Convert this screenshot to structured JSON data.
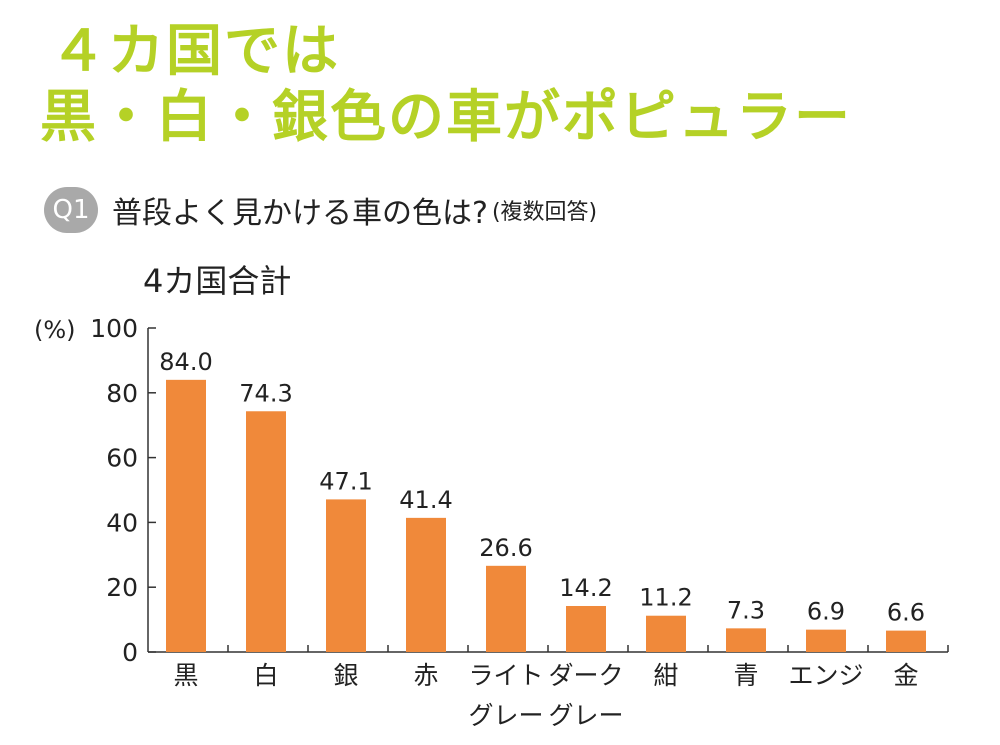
{
  "headline": {
    "line1": "４カ国では",
    "line2": "黒・白・銀色の車がポピュラー",
    "color": "#b5d126"
  },
  "question": {
    "badge": "Q1",
    "badge_color": "#a9a9a9",
    "text": "普段よく見かける車の色は?",
    "note": "(複数回答)"
  },
  "chart_data": {
    "type": "bar",
    "title": "4カ国合計",
    "ylabel": "(%)",
    "xlabel": "",
    "ylim": [
      0,
      100
    ],
    "yticks": [
      0,
      20,
      40,
      60,
      80,
      100
    ],
    "bar_color": "#f0893a",
    "categories": [
      [
        "黒"
      ],
      [
        "白"
      ],
      [
        "銀"
      ],
      [
        "赤"
      ],
      [
        "ライト",
        "グレー"
      ],
      [
        "ダーク",
        "グレー"
      ],
      [
        "紺"
      ],
      [
        "青"
      ],
      [
        "エンジ"
      ],
      [
        "金"
      ]
    ],
    "values": [
      84.0,
      74.3,
      47.1,
      41.4,
      26.6,
      14.2,
      11.2,
      7.3,
      6.9,
      6.6
    ],
    "value_labels": [
      "84.0",
      "74.3",
      "47.1",
      "41.4",
      "26.6",
      "14.2",
      "11.2",
      "7.3",
      "6.9",
      "6.6"
    ],
    "grid": false
  }
}
